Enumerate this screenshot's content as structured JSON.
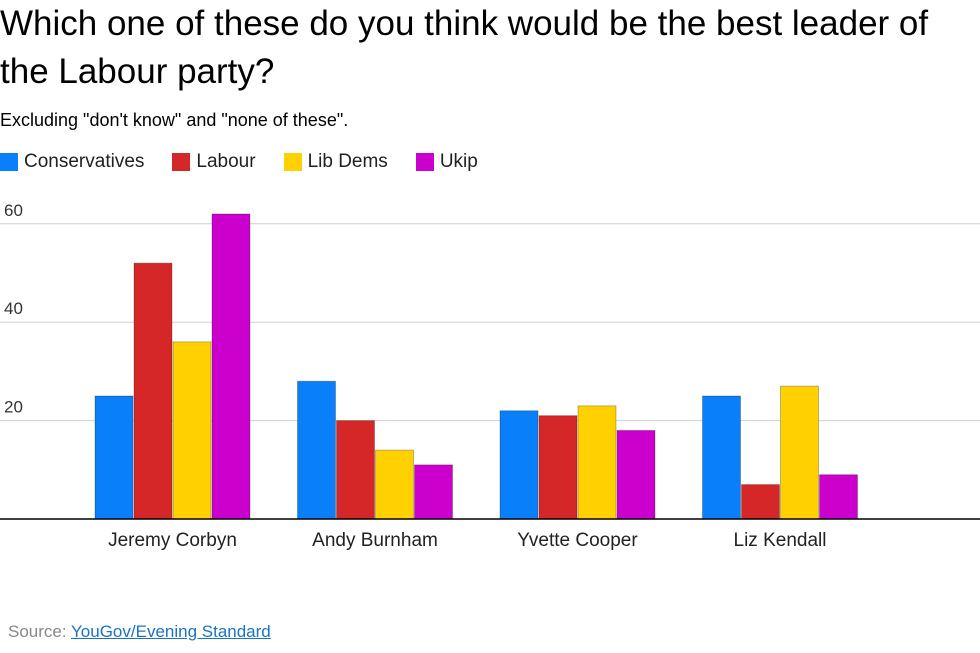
{
  "title": "Which one of these do you think would be the best leader of the Labour party?",
  "subtitle": "Excluding \"don't know\" and \"none of these\".",
  "source": {
    "label": "Source:",
    "link_text": "YouGov/Evening Standard"
  },
  "chart_data": {
    "type": "bar",
    "categories": [
      "Jeremy Corbyn",
      "Andy Burnham",
      "Yvette Cooper",
      "Liz Kendall"
    ],
    "series": [
      {
        "name": "Conservatives",
        "color": "#0a7ffa",
        "values": [
          25,
          28,
          22,
          25
        ]
      },
      {
        "name": "Labour",
        "color": "#d62728",
        "values": [
          52,
          20,
          21,
          7
        ]
      },
      {
        "name": "Lib Dems",
        "color": "#ffd100",
        "values": [
          36,
          14,
          23,
          27
        ]
      },
      {
        "name": "Ukip",
        "color": "#cc00cc",
        "values": [
          62,
          11,
          18,
          9
        ]
      }
    ],
    "y_ticks": [
      20,
      40,
      60
    ],
    "ylim": [
      0,
      65
    ],
    "grid": true,
    "legend_position": "top-left"
  }
}
